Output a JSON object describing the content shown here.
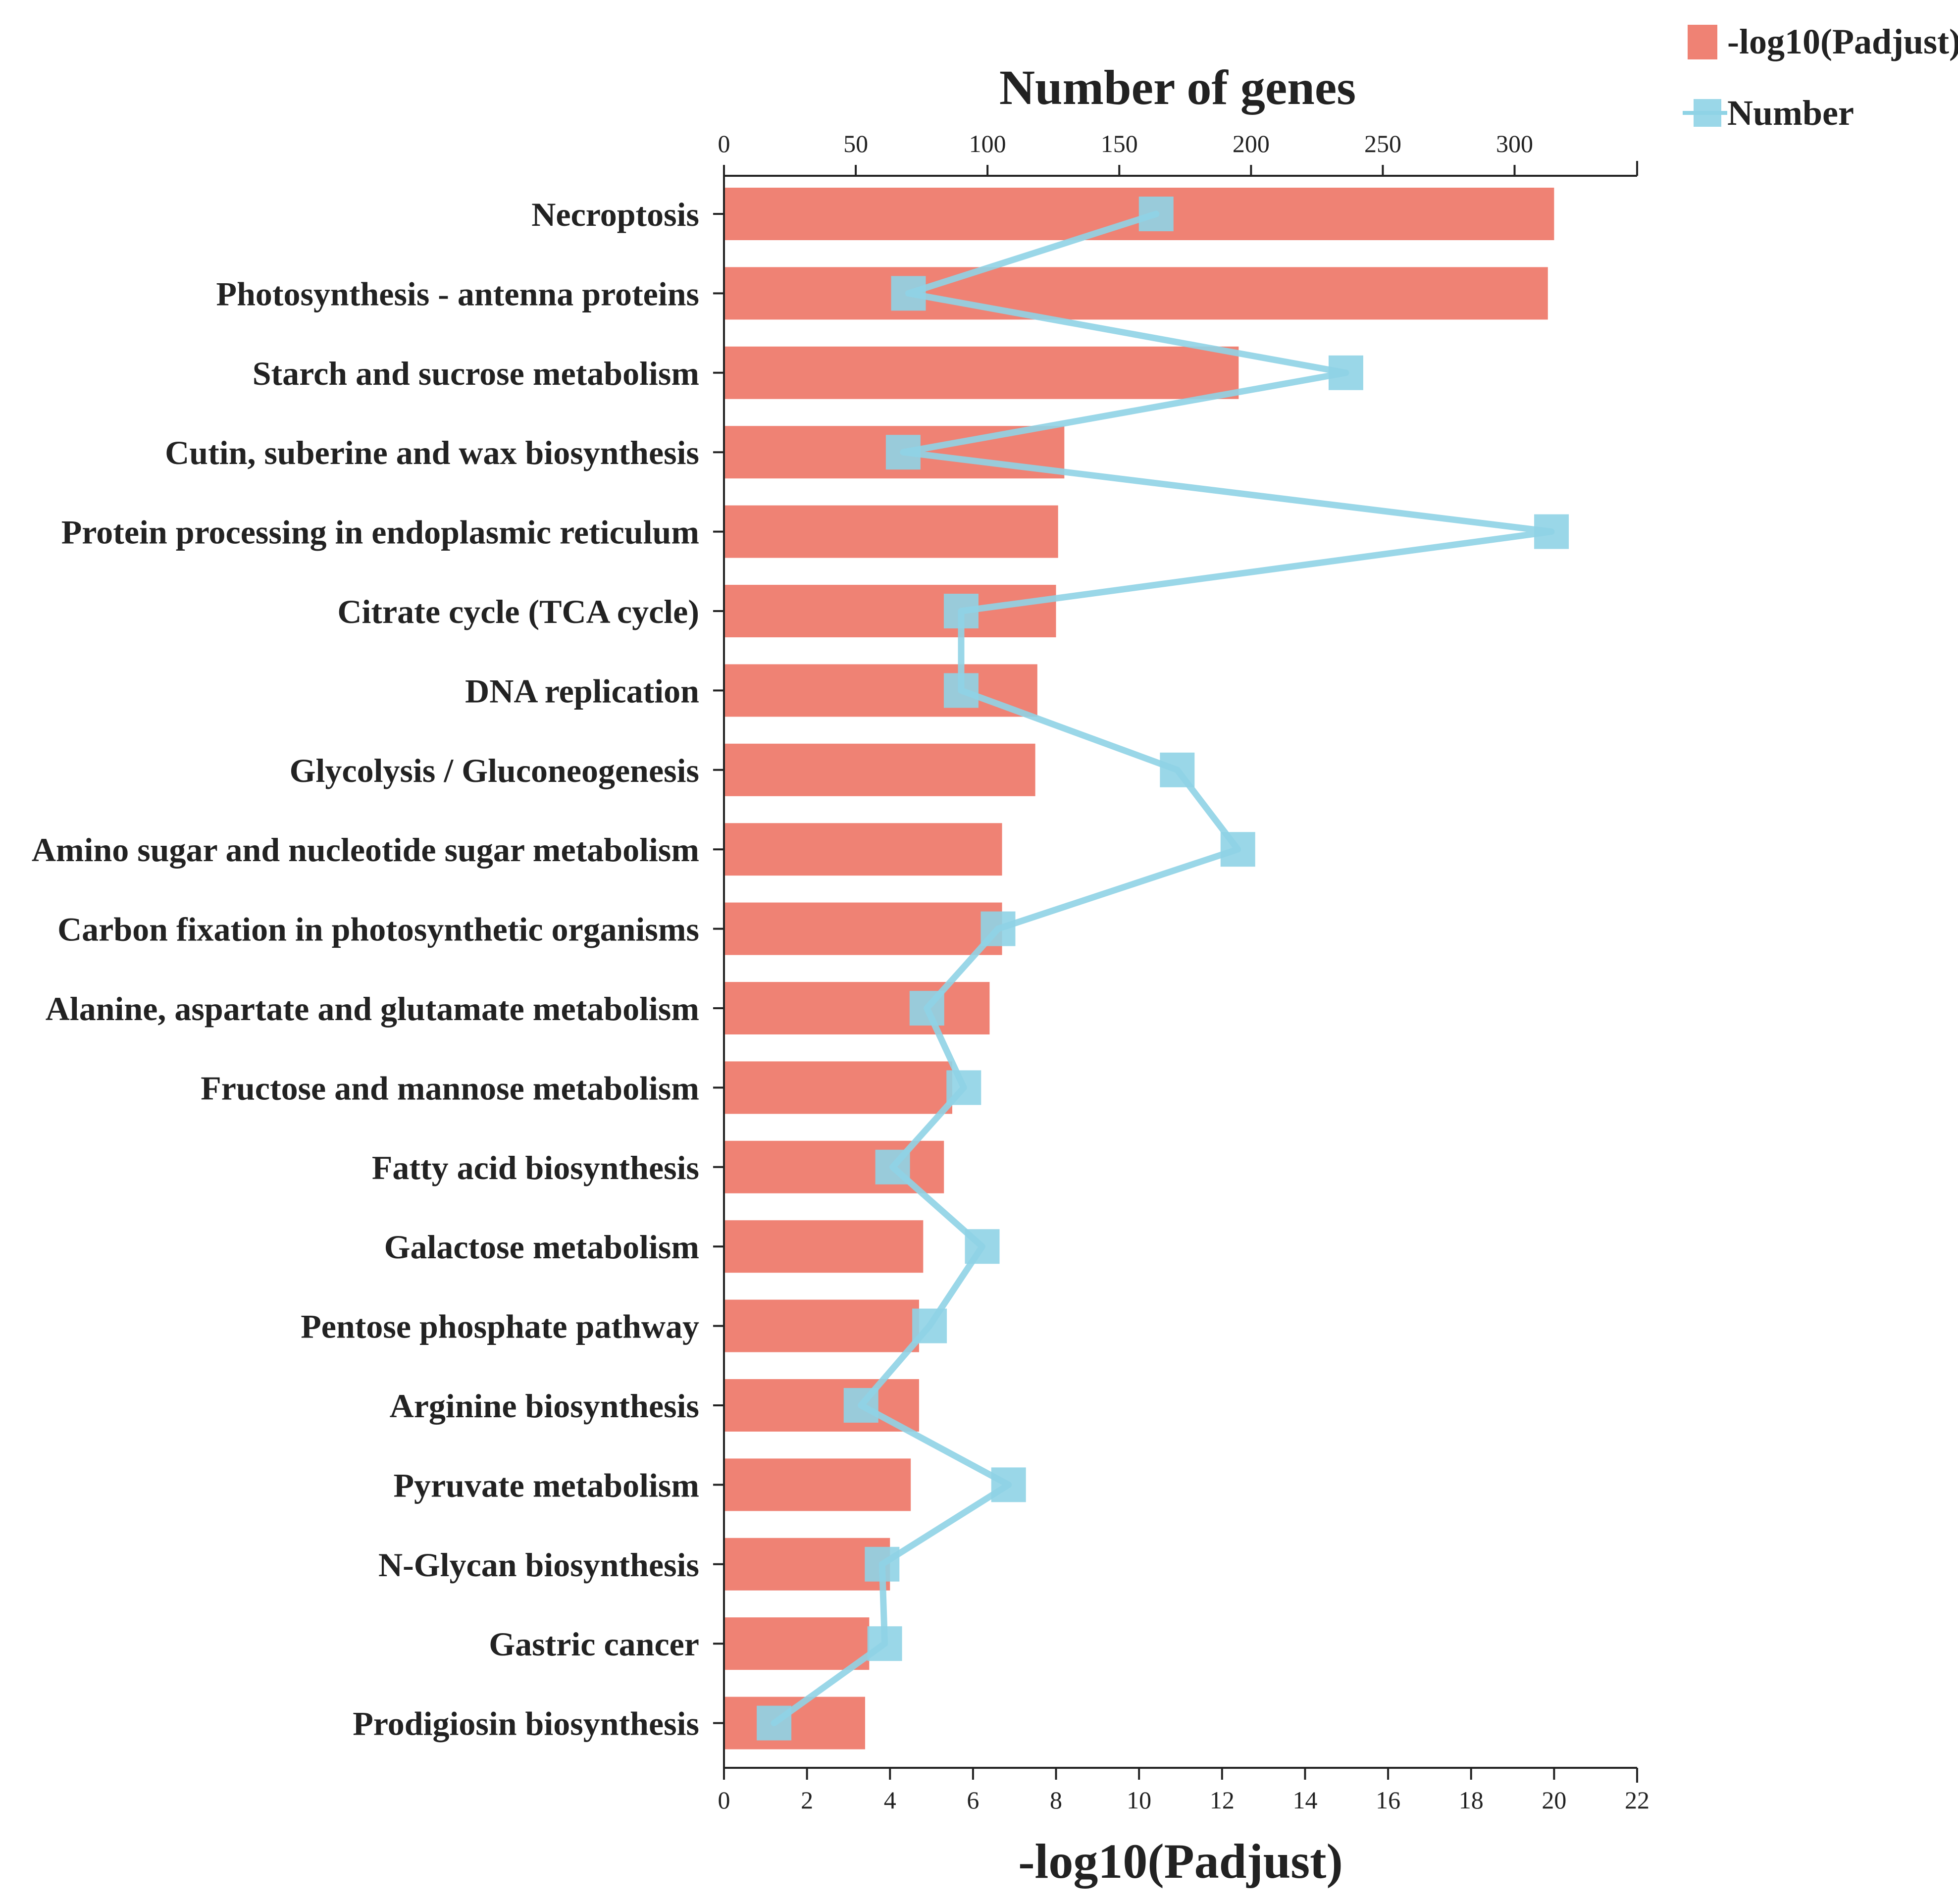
{
  "chart_data": {
    "type": "bar",
    "orientation": "horizontal",
    "categories": [
      "Necroptosis",
      "Photosynthesis - antenna proteins",
      "Starch and sucrose metabolism",
      "Cutin, suberine and wax biosynthesis",
      "Protein processing in endoplasmic reticulum",
      "Citrate cycle (TCA cycle)",
      "DNA replication",
      "Glycolysis / Gluconeogenesis",
      "Amino sugar and nucleotide sugar metabolism",
      "Carbon fixation in photosynthetic organisms",
      "Alanine, aspartate and glutamate metabolism",
      "Fructose and mannose metabolism",
      "Fatty acid biosynthesis",
      "Galactose metabolism",
      "Pentose phosphate pathway",
      "Arginine biosynthesis",
      "Pyruvate metabolism",
      "N-Glycan biosynthesis",
      "Gastric cancer",
      "Prodigiosin biosynthesis"
    ],
    "series": [
      {
        "name": "-log10(Padjust)",
        "type": "bar",
        "axis": "bottom",
        "color": "#ef8274",
        "values": [
          20.0,
          19.85,
          12.4,
          8.2,
          8.05,
          8.0,
          7.55,
          7.5,
          6.7,
          6.7,
          6.4,
          5.5,
          5.3,
          4.8,
          4.7,
          4.7,
          4.5,
          4.0,
          3.5,
          3.4
        ]
      },
      {
        "name": "Number",
        "type": "line",
        "axis": "top",
        "color": "#8fd3e5",
        "marker": "square",
        "values": [
          164,
          70,
          236,
          68,
          314,
          90,
          90,
          172,
          195,
          104,
          77,
          91,
          64,
          98,
          78,
          52,
          108,
          60,
          61,
          19
        ]
      }
    ],
    "x_bottom": {
      "label": "-log10(Padjust)",
      "range": [
        0,
        22
      ],
      "ticks": [
        "0",
        "2",
        "4",
        "6",
        "8",
        "10",
        "12",
        "14",
        "16",
        "18",
        "20",
        "22"
      ]
    },
    "x_top": {
      "label": "Number of genes",
      "range": [
        0,
        346.5
      ],
      "ticks": [
        "0",
        "50",
        "100",
        "150",
        "200",
        "250",
        "300"
      ]
    },
    "legend": {
      "placement": "top-right",
      "items": [
        "-log10(Padjust)",
        "Number"
      ]
    },
    "grid": false
  }
}
